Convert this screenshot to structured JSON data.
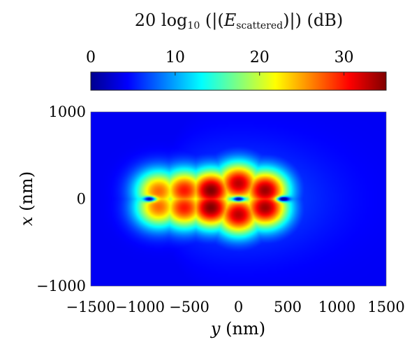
{
  "chart_data": {
    "type": "heatmap",
    "colorbar": {
      "title_parts": {
        "prefix": "20 log",
        "subscript": "10",
        "middle": " (|(",
        "italic": "E",
        "italic_subscript": "scattered",
        "suffix": ")|) (dB)"
      },
      "range": [
        0,
        35
      ],
      "ticks": [
        0,
        10,
        20,
        30
      ],
      "tick_labels": [
        "0",
        "10",
        "20",
        "30"
      ],
      "colormap": "jet",
      "orientation": "horizontal",
      "placement": "top"
    },
    "xlabel": "y (nm)",
    "ylabel": "x (nm)",
    "xlim": [
      -1500,
      1500
    ],
    "ylim": [
      -1000,
      1000
    ],
    "x_ticks": [
      -1500,
      -1000,
      -500,
      0,
      500,
      1000,
      1500
    ],
    "x_tick_labels": [
      "−1500",
      "−1000",
      "−500",
      "0",
      "500",
      "1000",
      "1500"
    ],
    "y_ticks": [
      -1000,
      0,
      1000
    ],
    "y_tick_labels": [
      "−1000",
      "0",
      "1000"
    ],
    "grid": false,
    "background_level_db": 4,
    "hotspots": [
      {
        "y": -810,
        "x": 90,
        "db": 27
      },
      {
        "y": -810,
        "x": -90,
        "db": 27
      },
      {
        "y": -550,
        "x": 100,
        "db": 30
      },
      {
        "y": -550,
        "x": -100,
        "db": 30
      },
      {
        "y": -280,
        "x": 100,
        "db": 35
      },
      {
        "y": -280,
        "x": -100,
        "db": 35
      },
      {
        "y": 0,
        "x": 180,
        "db": 33
      },
      {
        "y": 0,
        "x": -180,
        "db": 33
      },
      {
        "y": 270,
        "x": 100,
        "db": 34
      },
      {
        "y": 270,
        "x": -100,
        "db": 34
      }
    ],
    "nulls": [
      {
        "y": -900,
        "x": 0
      },
      {
        "y": 450,
        "x": 0
      },
      {
        "y": 0,
        "x": 0
      }
    ]
  }
}
